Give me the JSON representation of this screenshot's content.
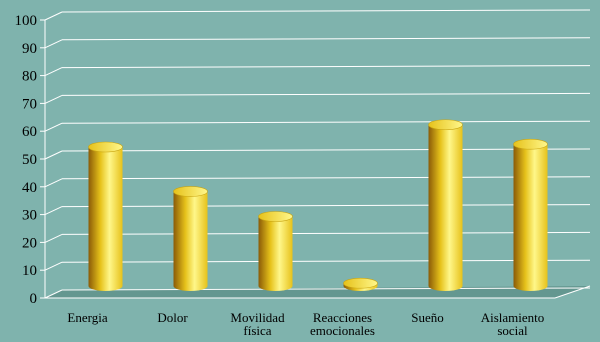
{
  "chart_data": {
    "type": "bar",
    "categories": [
      [
        "Energia"
      ],
      [
        "Dolor"
      ],
      [
        "Movilidad",
        "física"
      ],
      [
        "Reacciones",
        "emocionales"
      ],
      [
        "Sueño"
      ],
      [
        "Aislamiento",
        "social"
      ]
    ],
    "values": [
      50,
      34,
      25,
      1,
      58,
      51
    ],
    "ylim": [
      0,
      100
    ],
    "yticks": [
      0,
      10,
      20,
      30,
      40,
      50,
      60,
      70,
      80,
      90,
      100
    ],
    "grid": true,
    "style": "3d-cylinder",
    "colors": {
      "background": "#7fb3ad",
      "bar_light": "#fff78a",
      "bar_mid": "#e6c21a",
      "bar_dark": "#8a5a08",
      "gridline": "#ffffff",
      "floor": "#4f7f79"
    }
  }
}
